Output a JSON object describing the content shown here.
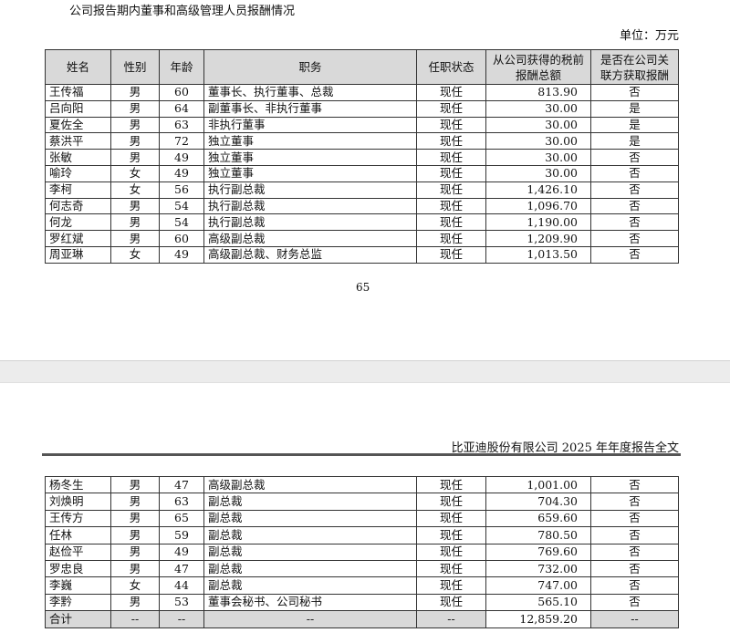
{
  "page1": {
    "title": "公司报告期内董事和高级管理人员报酬情况",
    "unit": "单位：万元",
    "page_number": "65"
  },
  "page2": {
    "running_header": "比亚迪股份有限公司 2025 年年度报告全文"
  },
  "table": {
    "headers": [
      "姓名",
      "性别",
      "年龄",
      "职务",
      "任职状态",
      "从公司获得的税前报酬总额",
      "是否在公司关联方获取报酬"
    ],
    "rows_page1": [
      [
        "王传福",
        "男",
        "60",
        "董事长、执行董事、总裁",
        "现任",
        "813.90",
        "否"
      ],
      [
        "吕向阳",
        "男",
        "64",
        "副董事长、非执行董事",
        "现任",
        "30.00",
        "是"
      ],
      [
        "夏佐全",
        "男",
        "63",
        "非执行董事",
        "现任",
        "30.00",
        "是"
      ],
      [
        "蔡洪平",
        "男",
        "72",
        "独立董事",
        "现任",
        "30.00",
        "是"
      ],
      [
        "张敏",
        "男",
        "49",
        "独立董事",
        "现任",
        "30.00",
        "否"
      ],
      [
        "喻玲",
        "女",
        "49",
        "独立董事",
        "现任",
        "30.00",
        "否"
      ],
      [
        "李柯",
        "女",
        "56",
        "执行副总裁",
        "现任",
        "1,426.10",
        "否"
      ],
      [
        "何志奇",
        "男",
        "54",
        "执行副总裁",
        "现任",
        "1,096.70",
        "否"
      ],
      [
        "何龙",
        "男",
        "54",
        "执行副总裁",
        "现任",
        "1,190.00",
        "否"
      ],
      [
        "罗红斌",
        "男",
        "60",
        "高级副总裁",
        "现任",
        "1,209.90",
        "否"
      ],
      [
        "周亚琳",
        "女",
        "49",
        "高级副总裁、财务总监",
        "现任",
        "1,013.50",
        "否"
      ]
    ],
    "rows_page2": [
      [
        "杨冬生",
        "男",
        "47",
        "高级副总裁",
        "现任",
        "1,001.00",
        "否"
      ],
      [
        "刘焕明",
        "男",
        "63",
        "副总裁",
        "现任",
        "704.30",
        "否"
      ],
      [
        "王传方",
        "男",
        "65",
        "副总裁",
        "现任",
        "659.60",
        "否"
      ],
      [
        "任林",
        "男",
        "59",
        "副总裁",
        "现任",
        "780.50",
        "否"
      ],
      [
        "赵俭平",
        "男",
        "49",
        "副总裁",
        "现任",
        "769.60",
        "否"
      ],
      [
        "罗忠良",
        "男",
        "47",
        "副总裁",
        "现任",
        "732.00",
        "否"
      ],
      [
        "李巍",
        "女",
        "44",
        "副总裁",
        "现任",
        "747.00",
        "否"
      ],
      [
        "李黔",
        "男",
        "53",
        "董事会秘书、公司秘书",
        "现任",
        "565.10",
        "否"
      ]
    ],
    "total": [
      "合计",
      "--",
      "--",
      "--",
      "--",
      "12,859.20",
      "--"
    ]
  }
}
